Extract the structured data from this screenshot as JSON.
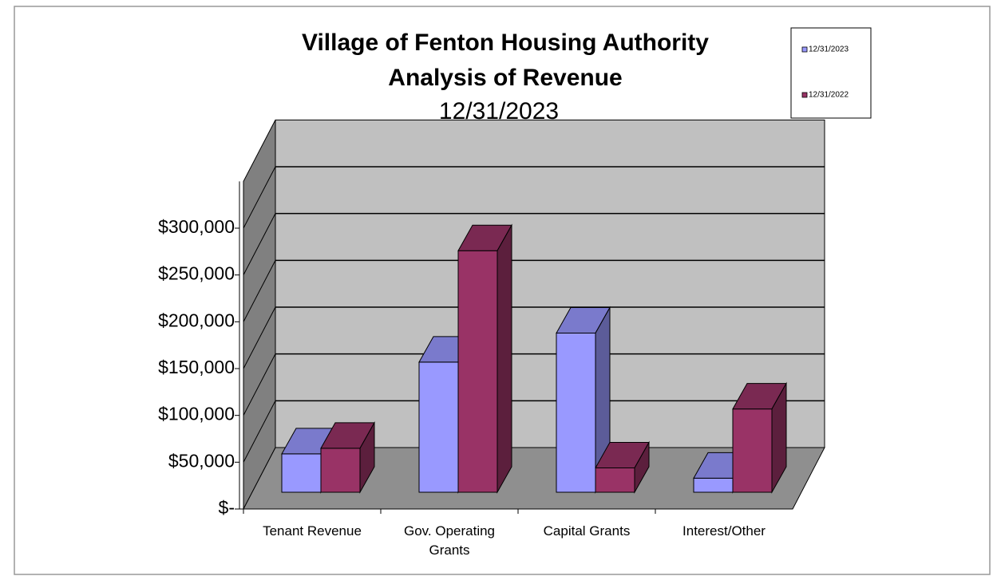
{
  "chart_data": {
    "type": "bar3d",
    "title": "Village of Fenton Housing Authority",
    "subtitle": "Analysis of Revenue",
    "date": "12/31/2023",
    "categories": [
      "Tenant Revenue",
      "Gov. Operating Grants",
      "Capital Grants",
      "Interest/Other"
    ],
    "series": [
      {
        "name": "12/31/2023",
        "color": "#9999ff",
        "values": [
          41000,
          139000,
          170000,
          15000
        ]
      },
      {
        "name": "12/31/2022",
        "color": "#993366",
        "values": [
          47000,
          258000,
          26000,
          89000
        ]
      }
    ],
    "ylim": [
      0,
      350000
    ],
    "yticks": [
      {
        "value": 0,
        "label": "$-"
      },
      {
        "value": 50000,
        "label": "$50,000"
      },
      {
        "value": 100000,
        "label": "$100,000"
      },
      {
        "value": 150000,
        "label": "$150,000"
      },
      {
        "value": 200000,
        "label": "$200,000"
      },
      {
        "value": 250000,
        "label": "$250,000"
      },
      {
        "value": 300000,
        "label": "$300,000"
      }
    ],
    "grid": true,
    "legend": "top-right"
  }
}
